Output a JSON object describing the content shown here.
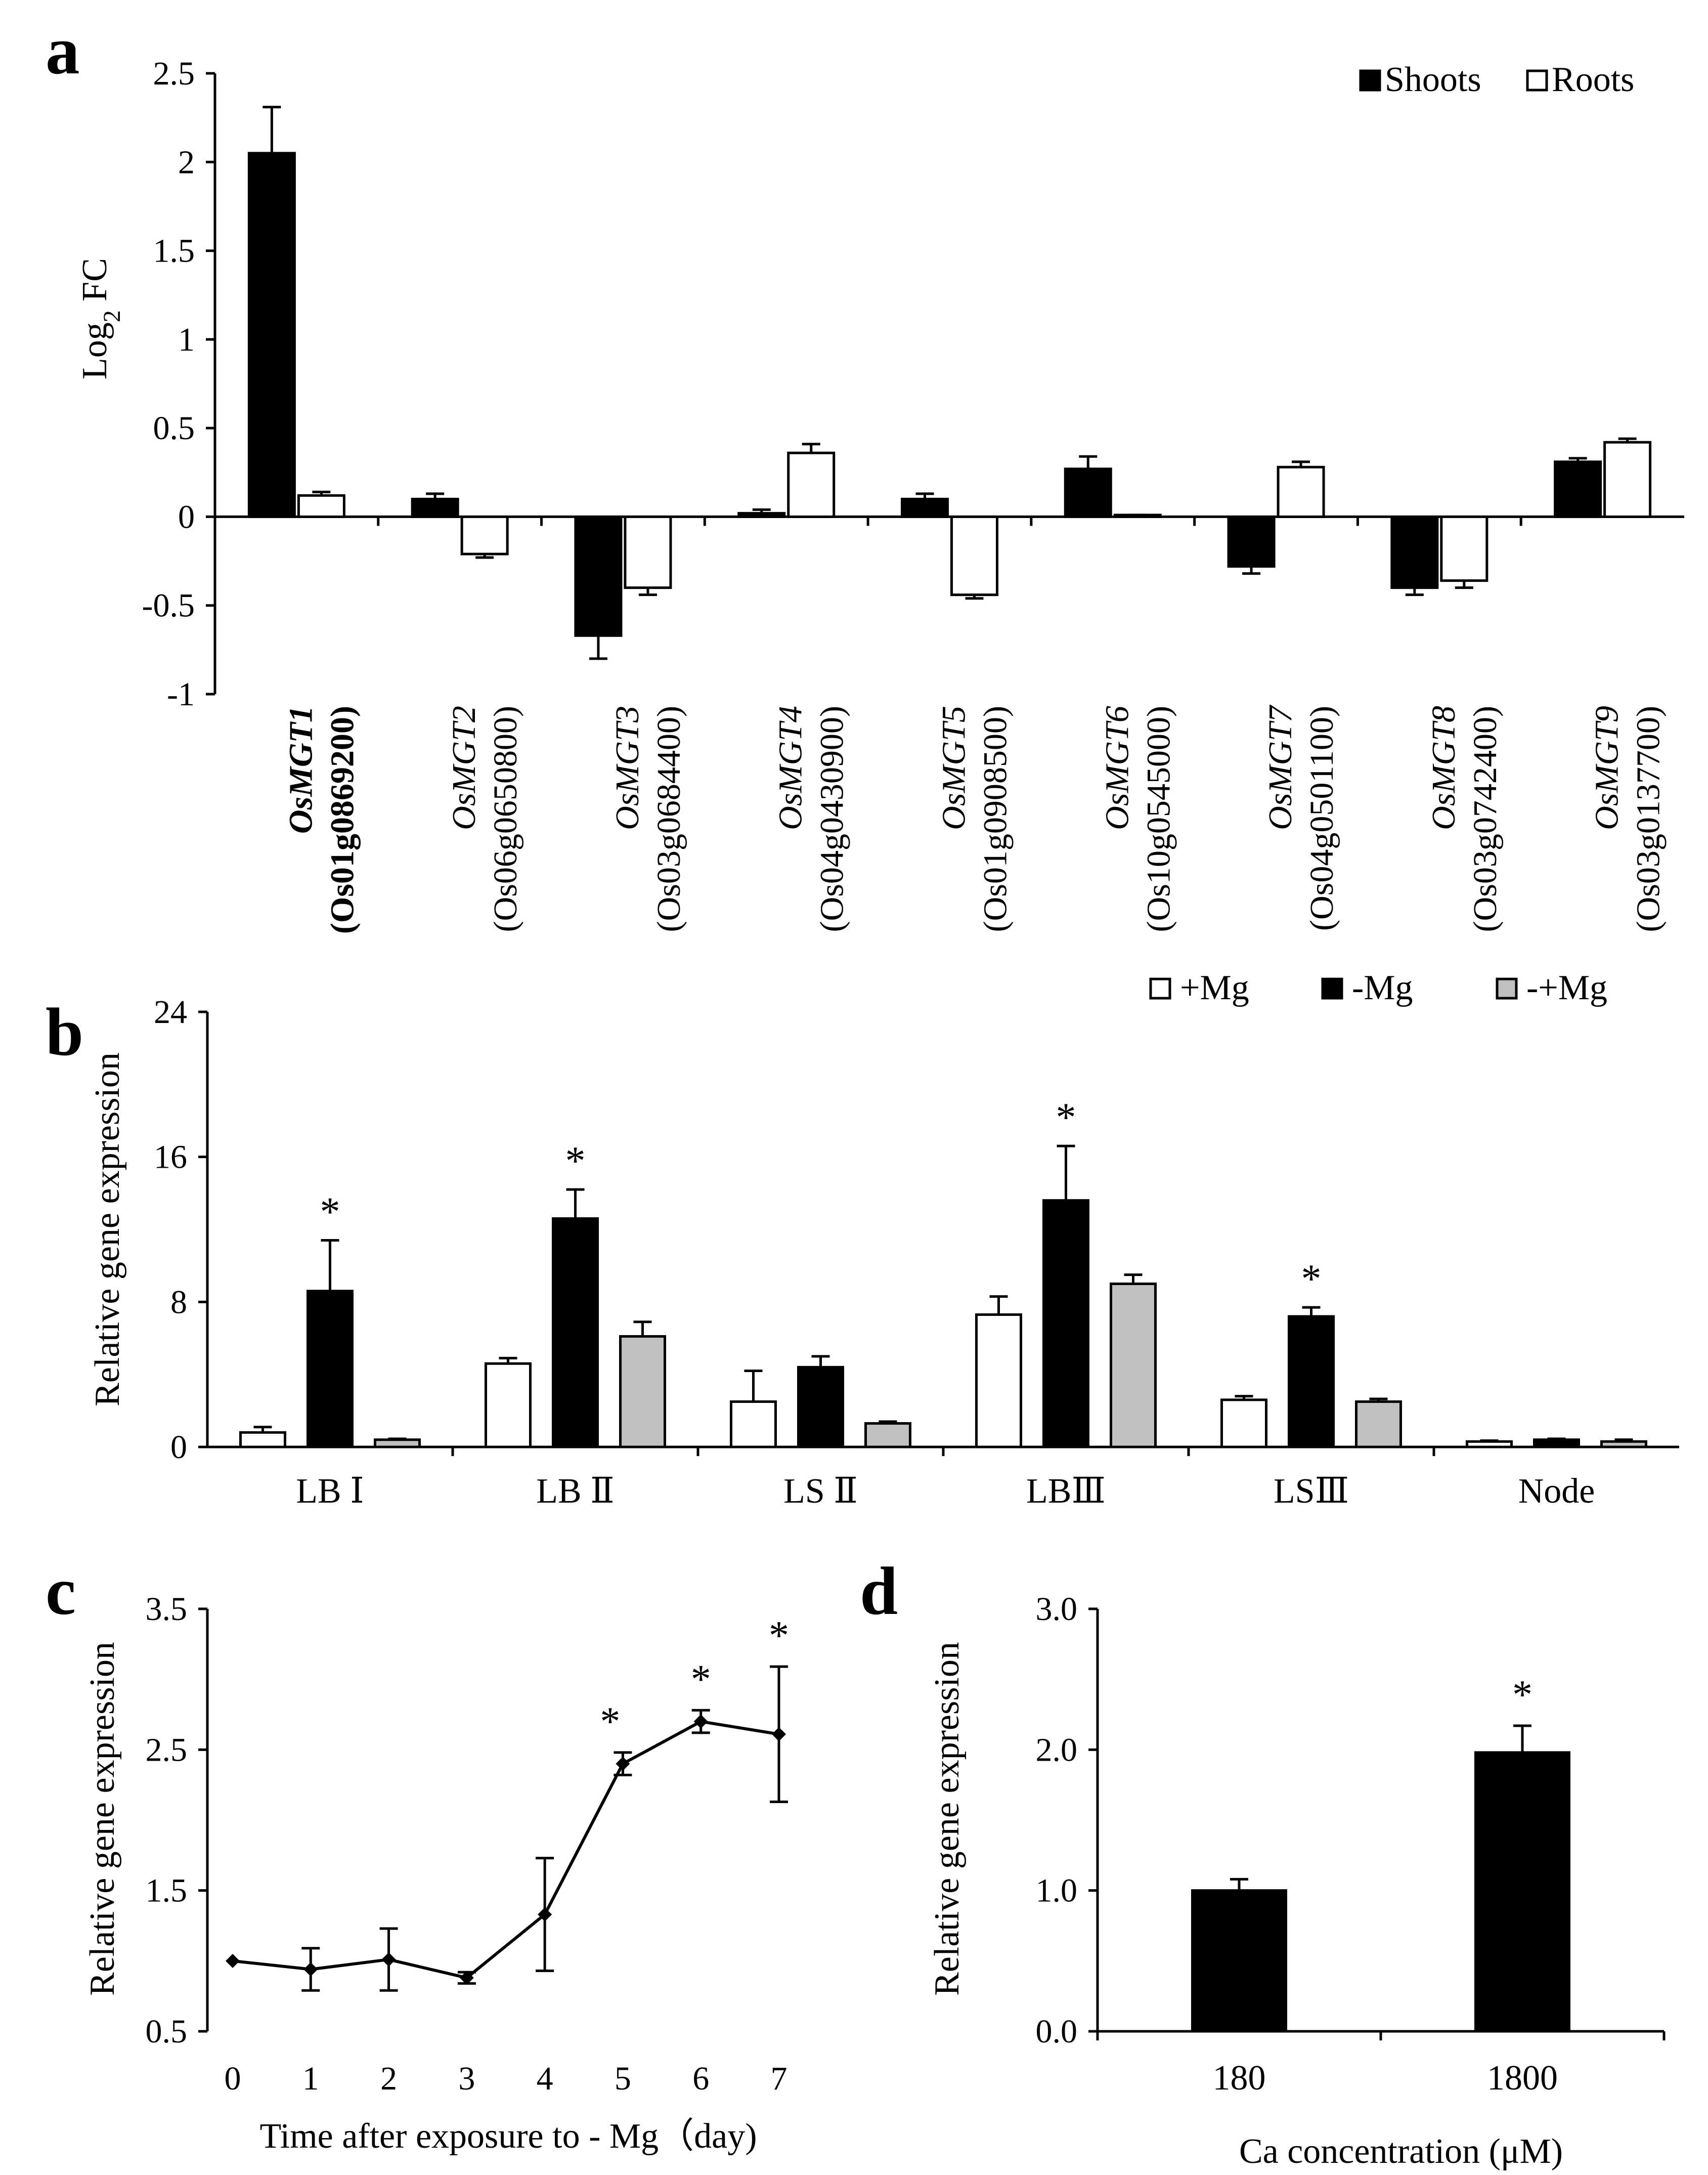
{
  "panels": [
    {
      "label": "a",
      "chart_data": {
        "type": "bar",
        "ylabel_main": "Log",
        "ylabel_sub": "2",
        "ylabel_tail": " FC",
        "ylim": [
          -1,
          2.5
        ],
        "yticks": [
          "2.5",
          "2",
          "1.5",
          "1",
          "0.5",
          "0",
          "-0.5",
          "-1"
        ],
        "ytick_values": [
          2.5,
          2,
          1.5,
          1,
          0.5,
          0,
          -0.5,
          -1
        ],
        "categories": [
          {
            "gene": "OsMGT1",
            "id": "(Os01g0869200)",
            "bold": true
          },
          {
            "gene": "OsMGT2",
            "id": "(Os06g0650800)",
            "bold": false
          },
          {
            "gene": "OsMGT3",
            "id": "(Os03g0684400)",
            "bold": false
          },
          {
            "gene": "OsMGT4",
            "id": "(Os04g0430900)",
            "bold": false
          },
          {
            "gene": "OsMGT5",
            "id": "(Os01g0908500)",
            "bold": false
          },
          {
            "gene": "OsMGT6",
            "id": "(Os10g0545000)",
            "bold": false
          },
          {
            "gene": "OsMGT7",
            "id": "(Os04g0501100)",
            "bold": false
          },
          {
            "gene": "OsMGT8",
            "id": "(Os03g0742400)",
            "bold": false
          },
          {
            "gene": "OsMGT9",
            "id": "(Os03g0137700)",
            "bold": false
          }
        ],
        "series": [
          {
            "name": "Shoots",
            "color": "#000000",
            "values": [
              2.05,
              0.1,
              -0.67,
              0.02,
              0.1,
              0.27,
              -0.28,
              -0.4,
              0.31
            ],
            "errors": [
              0.26,
              0.03,
              0.13,
              0.02,
              0.03,
              0.07,
              0.04,
              0.04,
              0.02
            ]
          },
          {
            "name": "Roots",
            "color": "#ffffff",
            "values": [
              0.12,
              -0.21,
              -0.4,
              0.36,
              -0.44,
              0.01,
              0.28,
              -0.36,
              0.42
            ],
            "errors": [
              0.02,
              0.02,
              0.04,
              0.05,
              0.02,
              0.0,
              0.03,
              0.04,
              0.02
            ]
          }
        ],
        "legend": [
          "Shoots",
          "Roots"
        ],
        "legend_position": "top-right"
      }
    },
    {
      "label": "b",
      "chart_data": {
        "type": "bar",
        "ylabel": "Relative gene expression",
        "ylim": [
          0,
          24
        ],
        "yticks": [
          "24",
          "16",
          "8",
          "0"
        ],
        "ytick_values": [
          24,
          16,
          8,
          0
        ],
        "categories": [
          "LB Ⅰ",
          "LB Ⅱ",
          "LS Ⅱ",
          "LBⅢ",
          "LSⅢ",
          "Node"
        ],
        "series": [
          {
            "name": "+Mg",
            "color": "#ffffff",
            "values": [
              0.8,
              4.6,
              2.5,
              7.3,
              2.6,
              0.3
            ],
            "errors": [
              0.3,
              0.3,
              1.7,
              1.0,
              0.2,
              0.05
            ]
          },
          {
            "name": "-Mg",
            "color": "#000000",
            "values": [
              8.6,
              12.6,
              4.4,
              13.6,
              7.2,
              0.4
            ],
            "errors": [
              2.8,
              1.6,
              0.6,
              3.0,
              0.5,
              0.05
            ]
          },
          {
            "name": "-+Mg",
            "color": "#c0c0c0",
            "values": [
              0.4,
              6.1,
              1.3,
              9.0,
              2.5,
              0.3
            ],
            "errors": [
              0.05,
              0.8,
              0.1,
              0.5,
              0.15,
              0.1
            ]
          }
        ],
        "significance": [
          "*",
          "*",
          "",
          "*",
          "*",
          ""
        ],
        "legend": [
          "+Mg",
          "-Mg",
          "-+Mg"
        ],
        "legend_position": "top-right"
      }
    },
    {
      "label": "c",
      "chart_data": {
        "type": "line",
        "xlabel": "Time after exposure to - Mg（day)",
        "ylabel": "Relative gene expression",
        "ylim": [
          0.5,
          3.5
        ],
        "yticks": [
          "3.5",
          "2.5",
          "1.5",
          "0.5"
        ],
        "ytick_values": [
          3.5,
          2.5,
          1.5,
          0.5
        ],
        "x": [
          0,
          1,
          2,
          3,
          4,
          5,
          6,
          7
        ],
        "xticks": [
          "0",
          "1",
          "2",
          "3",
          "4",
          "5",
          "6",
          "7"
        ],
        "y": [
          1.0,
          0.94,
          1.01,
          0.88,
          1.33,
          2.4,
          2.7,
          2.61
        ],
        "errors": [
          0.0,
          0.15,
          0.22,
          0.04,
          0.4,
          0.08,
          0.08,
          0.48
        ],
        "significance": [
          "",
          "",
          "",
          "",
          "",
          "*",
          "*",
          "*"
        ]
      }
    },
    {
      "label": "d",
      "chart_data": {
        "type": "bar",
        "xlabel": "Ca concentration (μM)",
        "ylabel": "Relative gene expression",
        "ylim": [
          0,
          3
        ],
        "yticks": [
          "3.0",
          "2.0",
          "1.0",
          "0.0"
        ],
        "ytick_values": [
          3,
          2,
          1,
          0
        ],
        "categories": [
          "180",
          "1800"
        ],
        "values": [
          1.0,
          1.98
        ],
        "errors": [
          0.08,
          0.19
        ],
        "significance": [
          "",
          "*"
        ],
        "color": "#000000"
      }
    }
  ]
}
